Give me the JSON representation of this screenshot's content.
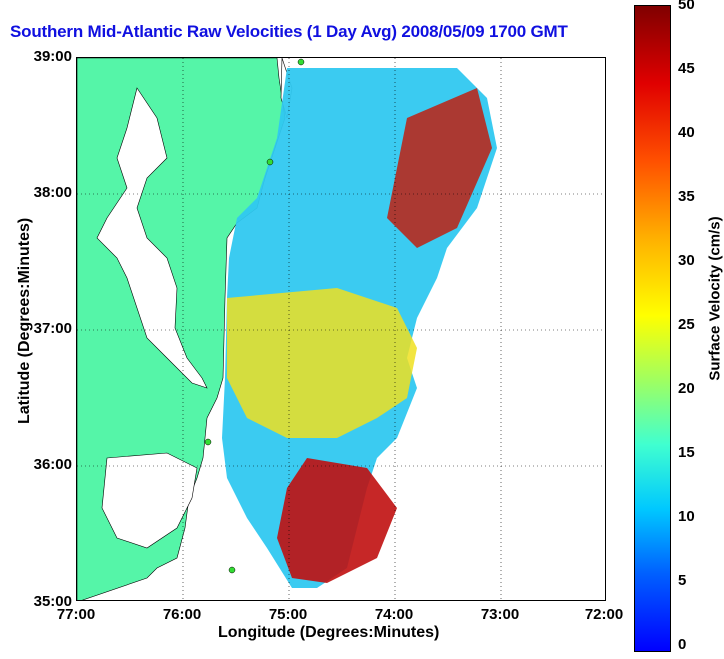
{
  "title": "Southern Mid-Atlantic Raw Velocities (1 Day Avg) 2008/05/09 1700 GMT",
  "x_axis": {
    "label": "Longitude (Degrees:Minutes)",
    "ticks": [
      "77:00",
      "76:00",
      "75:00",
      "74:00",
      "73:00",
      "72:00"
    ]
  },
  "y_axis": {
    "label": "Latitude (Degrees:Minutes)",
    "ticks": [
      "39:00",
      "38:00",
      "37:00",
      "36:00",
      "35:00"
    ]
  },
  "colorbar": {
    "label": "Surface Velocity (cm/s)",
    "ticks": [
      "50",
      "45",
      "40",
      "35",
      "30",
      "25",
      "20",
      "15",
      "10",
      "5",
      "0"
    ],
    "range": [
      0,
      50
    ]
  },
  "map": {
    "extent": {
      "lon": [
        -77,
        -72
      ],
      "lat": [
        35,
        39
      ]
    },
    "land_color": "#55f5a8",
    "station_color": "#33dd33"
  }
}
